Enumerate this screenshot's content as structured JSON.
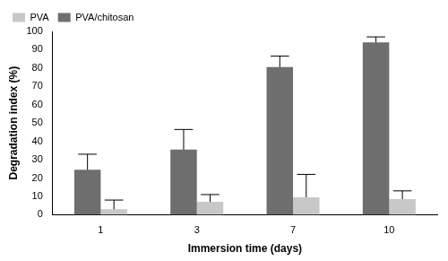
{
  "chart_data": {
    "type": "bar",
    "x_label": "Immersion time (days)",
    "y_label": "Degradation index (%)",
    "categories": [
      "1",
      "3",
      "7",
      "10"
    ],
    "series": [
      {
        "name": "PVA/chitosan",
        "color": "#6e6e6e",
        "values": [
          24.5,
          35.5,
          80.5,
          94
        ],
        "errors": [
          8.5,
          11,
          6,
          3
        ]
      },
      {
        "name": "PVA",
        "color": "#c8c8c8",
        "values": [
          3,
          7,
          9.5,
          8.5
        ],
        "errors": [
          5,
          4,
          12.5,
          4.5
        ]
      }
    ],
    "ylim": [
      0,
      100
    ],
    "yticks": [
      0,
      10,
      20,
      30,
      40,
      50,
      60,
      70,
      80,
      90,
      100
    ],
    "grid": false,
    "legend": "upper left"
  }
}
